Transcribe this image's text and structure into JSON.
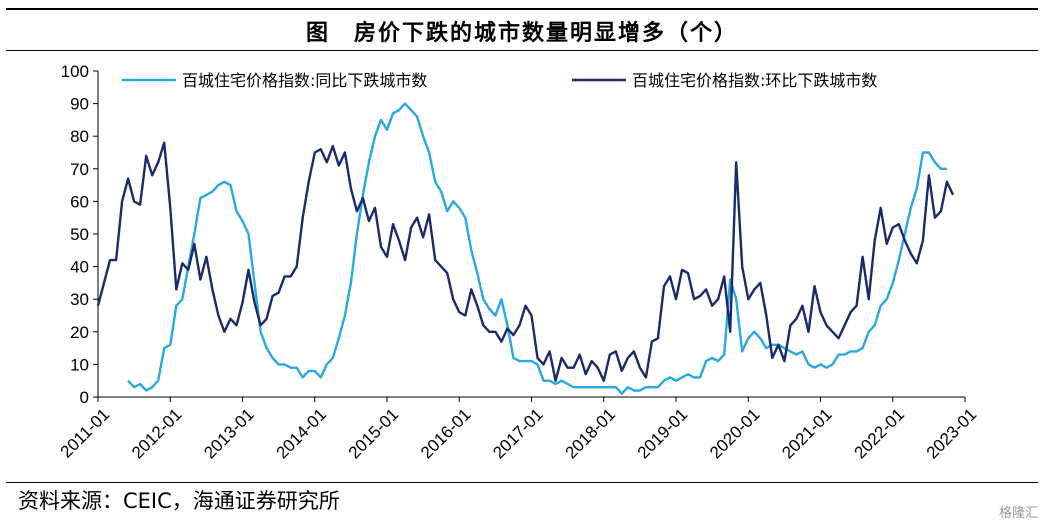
{
  "title": "图　房价下跌的城市数量明显增多（个）",
  "source": "资料来源：CEIC，海通证券研究所",
  "watermark": "格隆汇",
  "chart_data": {
    "type": "line",
    "ylim": [
      0,
      100
    ],
    "y_ticks": [
      0,
      10,
      20,
      30,
      40,
      50,
      60,
      70,
      80,
      90,
      100
    ],
    "x_range": [
      "2011-01",
      "2023-01"
    ],
    "x_ticks": [
      "2011-01",
      "2012-01",
      "2013-01",
      "2014-01",
      "2015-01",
      "2016-01",
      "2017-01",
      "2018-01",
      "2019-01",
      "2020-01",
      "2021-01",
      "2022-01",
      "2023-01"
    ],
    "grid": false,
    "legend_position": "top",
    "series": [
      {
        "name": "百城住宅价格指数:同比下跌城市数",
        "color": "#29a9e1",
        "points": [
          [
            "2011-06",
            5
          ],
          [
            "2011-07",
            3
          ],
          [
            "2011-08",
            4
          ],
          [
            "2011-09",
            2
          ],
          [
            "2011-10",
            3
          ],
          [
            "2011-11",
            5
          ],
          [
            "2011-12",
            15
          ],
          [
            "2012-01",
            16
          ],
          [
            "2012-02",
            28
          ],
          [
            "2012-03",
            30
          ],
          [
            "2012-04",
            40
          ],
          [
            "2012-05",
            50
          ],
          [
            "2012-06",
            61
          ],
          [
            "2012-07",
            62
          ],
          [
            "2012-08",
            63
          ],
          [
            "2012-09",
            65
          ],
          [
            "2012-10",
            66
          ],
          [
            "2012-11",
            65
          ],
          [
            "2012-12",
            57
          ],
          [
            "2013-01",
            54
          ],
          [
            "2013-02",
            50
          ],
          [
            "2013-03",
            35
          ],
          [
            "2013-04",
            20
          ],
          [
            "2013-05",
            15
          ],
          [
            "2013-06",
            12
          ],
          [
            "2013-07",
            10
          ],
          [
            "2013-08",
            10
          ],
          [
            "2013-09",
            9
          ],
          [
            "2013-10",
            9
          ],
          [
            "2013-11",
            6
          ],
          [
            "2013-12",
            8
          ],
          [
            "2014-01",
            8
          ],
          [
            "2014-02",
            6
          ],
          [
            "2014-03",
            10
          ],
          [
            "2014-04",
            12
          ],
          [
            "2014-05",
            18
          ],
          [
            "2014-06",
            25
          ],
          [
            "2014-07",
            35
          ],
          [
            "2014-08",
            50
          ],
          [
            "2014-09",
            62
          ],
          [
            "2014-10",
            72
          ],
          [
            "2014-11",
            80
          ],
          [
            "2014-12",
            85
          ],
          [
            "2015-01",
            82
          ],
          [
            "2015-02",
            87
          ],
          [
            "2015-03",
            88
          ],
          [
            "2015-04",
            90
          ],
          [
            "2015-05",
            88
          ],
          [
            "2015-06",
            86
          ],
          [
            "2015-07",
            80
          ],
          [
            "2015-08",
            75
          ],
          [
            "2015-09",
            66
          ],
          [
            "2015-10",
            63
          ],
          [
            "2015-11",
            57
          ],
          [
            "2015-12",
            60
          ],
          [
            "2016-01",
            58
          ],
          [
            "2016-02",
            55
          ],
          [
            "2016-03",
            45
          ],
          [
            "2016-04",
            38
          ],
          [
            "2016-05",
            30
          ],
          [
            "2016-06",
            27
          ],
          [
            "2016-07",
            25
          ],
          [
            "2016-08",
            30
          ],
          [
            "2016-09",
            22
          ],
          [
            "2016-10",
            12
          ],
          [
            "2016-11",
            11
          ],
          [
            "2016-12",
            11
          ],
          [
            "2017-01",
            11
          ],
          [
            "2017-02",
            10
          ],
          [
            "2017-03",
            5
          ],
          [
            "2017-04",
            5
          ],
          [
            "2017-05",
            4
          ],
          [
            "2017-06",
            5
          ],
          [
            "2017-07",
            4
          ],
          [
            "2017-08",
            3
          ],
          [
            "2017-09",
            3
          ],
          [
            "2017-10",
            3
          ],
          [
            "2017-11",
            3
          ],
          [
            "2017-12",
            3
          ],
          [
            "2018-01",
            3
          ],
          [
            "2018-02",
            3
          ],
          [
            "2018-03",
            3
          ],
          [
            "2018-04",
            1
          ],
          [
            "2018-05",
            3
          ],
          [
            "2018-06",
            2
          ],
          [
            "2018-07",
            2
          ],
          [
            "2018-08",
            3
          ],
          [
            "2018-09",
            3
          ],
          [
            "2018-10",
            3
          ],
          [
            "2018-11",
            5
          ],
          [
            "2018-12",
            6
          ],
          [
            "2019-01",
            5
          ],
          [
            "2019-02",
            6
          ],
          [
            "2019-03",
            7
          ],
          [
            "2019-04",
            6
          ],
          [
            "2019-05",
            6
          ],
          [
            "2019-06",
            11
          ],
          [
            "2019-07",
            12
          ],
          [
            "2019-08",
            11
          ],
          [
            "2019-09",
            13
          ],
          [
            "2019-10",
            36
          ],
          [
            "2019-11",
            30
          ],
          [
            "2019-12",
            14
          ],
          [
            "2020-01",
            18
          ],
          [
            "2020-02",
            20
          ],
          [
            "2020-03",
            18
          ],
          [
            "2020-04",
            15
          ],
          [
            "2020-05",
            16
          ],
          [
            "2020-06",
            16
          ],
          [
            "2020-07",
            15
          ],
          [
            "2020-08",
            14
          ],
          [
            "2020-09",
            13
          ],
          [
            "2020-10",
            14
          ],
          [
            "2020-11",
            10
          ],
          [
            "2020-12",
            9
          ],
          [
            "2021-01",
            10
          ],
          [
            "2021-02",
            9
          ],
          [
            "2021-03",
            10
          ],
          [
            "2021-04",
            13
          ],
          [
            "2021-05",
            13
          ],
          [
            "2021-06",
            14
          ],
          [
            "2021-07",
            14
          ],
          [
            "2021-08",
            15
          ],
          [
            "2021-09",
            20
          ],
          [
            "2021-10",
            22
          ],
          [
            "2021-11",
            28
          ],
          [
            "2021-12",
            30
          ],
          [
            "2022-01",
            35
          ],
          [
            "2022-02",
            42
          ],
          [
            "2022-03",
            50
          ],
          [
            "2022-04",
            58
          ],
          [
            "2022-05",
            64
          ],
          [
            "2022-06",
            75
          ],
          [
            "2022-07",
            75
          ],
          [
            "2022-08",
            72
          ],
          [
            "2022-09",
            70
          ],
          [
            "2022-10",
            70
          ]
        ]
      },
      {
        "name": "百城住宅价格指数:环比下跌城市数",
        "color": "#1a2b6b",
        "points": [
          [
            "2011-01",
            28
          ],
          [
            "2011-02",
            35
          ],
          [
            "2011-03",
            42
          ],
          [
            "2011-04",
            42
          ],
          [
            "2011-05",
            60
          ],
          [
            "2011-06",
            67
          ],
          [
            "2011-07",
            60
          ],
          [
            "2011-08",
            59
          ],
          [
            "2011-09",
            74
          ],
          [
            "2011-10",
            68
          ],
          [
            "2011-11",
            72
          ],
          [
            "2011-12",
            78
          ],
          [
            "2012-01",
            58
          ],
          [
            "2012-02",
            33
          ],
          [
            "2012-03",
            41
          ],
          [
            "2012-04",
            39
          ],
          [
            "2012-05",
            47
          ],
          [
            "2012-06",
            36
          ],
          [
            "2012-07",
            43
          ],
          [
            "2012-08",
            33
          ],
          [
            "2012-09",
            25
          ],
          [
            "2012-10",
            20
          ],
          [
            "2012-11",
            24
          ],
          [
            "2012-12",
            22
          ],
          [
            "2013-01",
            29
          ],
          [
            "2013-02",
            39
          ],
          [
            "2013-03",
            29
          ],
          [
            "2013-04",
            22
          ],
          [
            "2013-05",
            24
          ],
          [
            "2013-06",
            31
          ],
          [
            "2013-07",
            32
          ],
          [
            "2013-08",
            37
          ],
          [
            "2013-09",
            37
          ],
          [
            "2013-10",
            40
          ],
          [
            "2013-11",
            55
          ],
          [
            "2013-12",
            66
          ],
          [
            "2014-01",
            75
          ],
          [
            "2014-02",
            76
          ],
          [
            "2014-03",
            72
          ],
          [
            "2014-04",
            77
          ],
          [
            "2014-05",
            71
          ],
          [
            "2014-06",
            75
          ],
          [
            "2014-07",
            64
          ],
          [
            "2014-08",
            57
          ],
          [
            "2014-09",
            61
          ],
          [
            "2014-10",
            54
          ],
          [
            "2014-11",
            58
          ],
          [
            "2014-12",
            46
          ],
          [
            "2015-01",
            43
          ],
          [
            "2015-02",
            53
          ],
          [
            "2015-03",
            48
          ],
          [
            "2015-04",
            42
          ],
          [
            "2015-05",
            52
          ],
          [
            "2015-06",
            55
          ],
          [
            "2015-07",
            49
          ],
          [
            "2015-08",
            56
          ],
          [
            "2015-09",
            42
          ],
          [
            "2015-10",
            40
          ],
          [
            "2015-11",
            38
          ],
          [
            "2015-12",
            30
          ],
          [
            "2016-01",
            26
          ],
          [
            "2016-02",
            25
          ],
          [
            "2016-03",
            33
          ],
          [
            "2016-04",
            28
          ],
          [
            "2016-05",
            22
          ],
          [
            "2016-06",
            20
          ],
          [
            "2016-07",
            20
          ],
          [
            "2016-08",
            17
          ],
          [
            "2016-09",
            21
          ],
          [
            "2016-10",
            19
          ],
          [
            "2016-11",
            22
          ],
          [
            "2016-12",
            28
          ],
          [
            "2017-01",
            25
          ],
          [
            "2017-02",
            12
          ],
          [
            "2017-03",
            10
          ],
          [
            "2017-04",
            14
          ],
          [
            "2017-05",
            5
          ],
          [
            "2017-06",
            12
          ],
          [
            "2017-07",
            9
          ],
          [
            "2017-08",
            9
          ],
          [
            "2017-09",
            13
          ],
          [
            "2017-10",
            7
          ],
          [
            "2017-11",
            11
          ],
          [
            "2017-12",
            9
          ],
          [
            "2018-01",
            5
          ],
          [
            "2018-02",
            13
          ],
          [
            "2018-03",
            14
          ],
          [
            "2018-04",
            8
          ],
          [
            "2018-05",
            12
          ],
          [
            "2018-06",
            14
          ],
          [
            "2018-07",
            9
          ],
          [
            "2018-08",
            6
          ],
          [
            "2018-09",
            17
          ],
          [
            "2018-10",
            18
          ],
          [
            "2018-11",
            34
          ],
          [
            "2018-12",
            37
          ],
          [
            "2019-01",
            30
          ],
          [
            "2019-02",
            39
          ],
          [
            "2019-03",
            38
          ],
          [
            "2019-04",
            30
          ],
          [
            "2019-05",
            31
          ],
          [
            "2019-06",
            33
          ],
          [
            "2019-07",
            28
          ],
          [
            "2019-08",
            30
          ],
          [
            "2019-09",
            37
          ],
          [
            "2019-10",
            20
          ],
          [
            "2019-11",
            72
          ],
          [
            "2019-12",
            40
          ],
          [
            "2020-01",
            30
          ],
          [
            "2020-02",
            33
          ],
          [
            "2020-03",
            35
          ],
          [
            "2020-04",
            25
          ],
          [
            "2020-05",
            12
          ],
          [
            "2020-06",
            16
          ],
          [
            "2020-07",
            11
          ],
          [
            "2020-08",
            22
          ],
          [
            "2020-09",
            24
          ],
          [
            "2020-10",
            28
          ],
          [
            "2020-11",
            20
          ],
          [
            "2020-12",
            34
          ],
          [
            "2021-01",
            26
          ],
          [
            "2021-02",
            22
          ],
          [
            "2021-03",
            20
          ],
          [
            "2021-04",
            18
          ],
          [
            "2021-05",
            22
          ],
          [
            "2021-06",
            26
          ],
          [
            "2021-07",
            28
          ],
          [
            "2021-08",
            43
          ],
          [
            "2021-09",
            30
          ],
          [
            "2021-10",
            48
          ],
          [
            "2021-11",
            58
          ],
          [
            "2021-12",
            47
          ],
          [
            "2022-01",
            52
          ],
          [
            "2022-02",
            53
          ],
          [
            "2022-03",
            48
          ],
          [
            "2022-04",
            44
          ],
          [
            "2022-05",
            41
          ],
          [
            "2022-06",
            48
          ],
          [
            "2022-07",
            68
          ],
          [
            "2022-08",
            55
          ],
          [
            "2022-09",
            57
          ],
          [
            "2022-10",
            66
          ],
          [
            "2022-11",
            62
          ]
        ]
      }
    ]
  }
}
